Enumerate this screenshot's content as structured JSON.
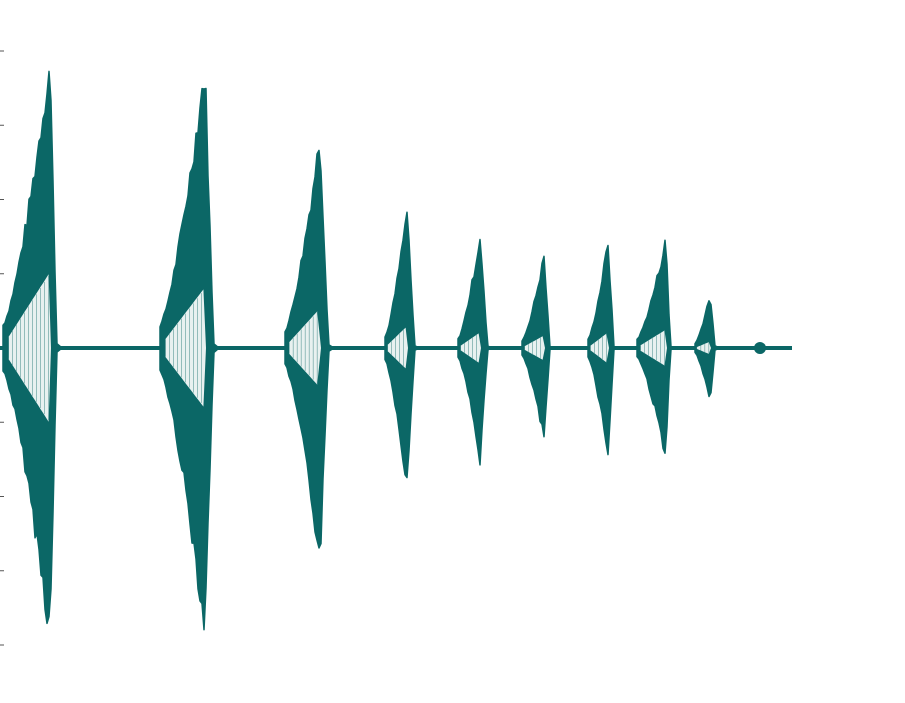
{
  "chart_data": {
    "type": "area",
    "title": "",
    "xlabel": "",
    "ylabel": "",
    "grid": false,
    "legend": "none",
    "y_axis": {
      "ylim": [
        -1,
        1
      ],
      "tick_values": [
        -1.0,
        -0.75,
        -0.5,
        -0.25,
        0,
        0.25,
        0.5,
        0.75,
        1.0
      ],
      "tick_labels_shown": false
    },
    "xlim": [
      0,
      800
    ],
    "baseline": 0,
    "end_marker": {
      "x": 760,
      "y": 0
    },
    "bursts": [
      {
        "x_start": 3,
        "x_peak": 50,
        "x_end": 58,
        "amplitude": 1.0,
        "inner_amplitude": 0.25
      },
      {
        "x_start": 160,
        "x_peak": 205,
        "x_end": 215,
        "amplitude": 0.98,
        "inner_amplitude": 0.2
      },
      {
        "x_start": 285,
        "x_peak": 320,
        "x_end": 330,
        "amplitude": 0.74,
        "inner_amplitude": 0.13
      },
      {
        "x_start": 385,
        "x_peak": 407,
        "x_end": 416,
        "amplitude": 0.48,
        "inner_amplitude": 0.07
      },
      {
        "x_start": 458,
        "x_peak": 480,
        "x_end": 489,
        "amplitude": 0.39,
        "inner_amplitude": 0.05
      },
      {
        "x_start": 522,
        "x_peak": 544,
        "x_end": 551,
        "amplitude": 0.32,
        "inner_amplitude": 0.04
      },
      {
        "x_start": 588,
        "x_peak": 608,
        "x_end": 615,
        "amplitude": 0.37,
        "inner_amplitude": 0.05
      },
      {
        "x_start": 637,
        "x_peak": 666,
        "x_end": 671,
        "amplitude": 0.38,
        "inner_amplitude": 0.06
      },
      {
        "x_start": 695,
        "x_peak": 710,
        "x_end": 716,
        "amplitude": 0.19,
        "inner_amplitude": 0.02
      }
    ],
    "colors": {
      "waveform": "#0b6766",
      "inner": "#e8f1f0",
      "axis": "#555555"
    }
  }
}
